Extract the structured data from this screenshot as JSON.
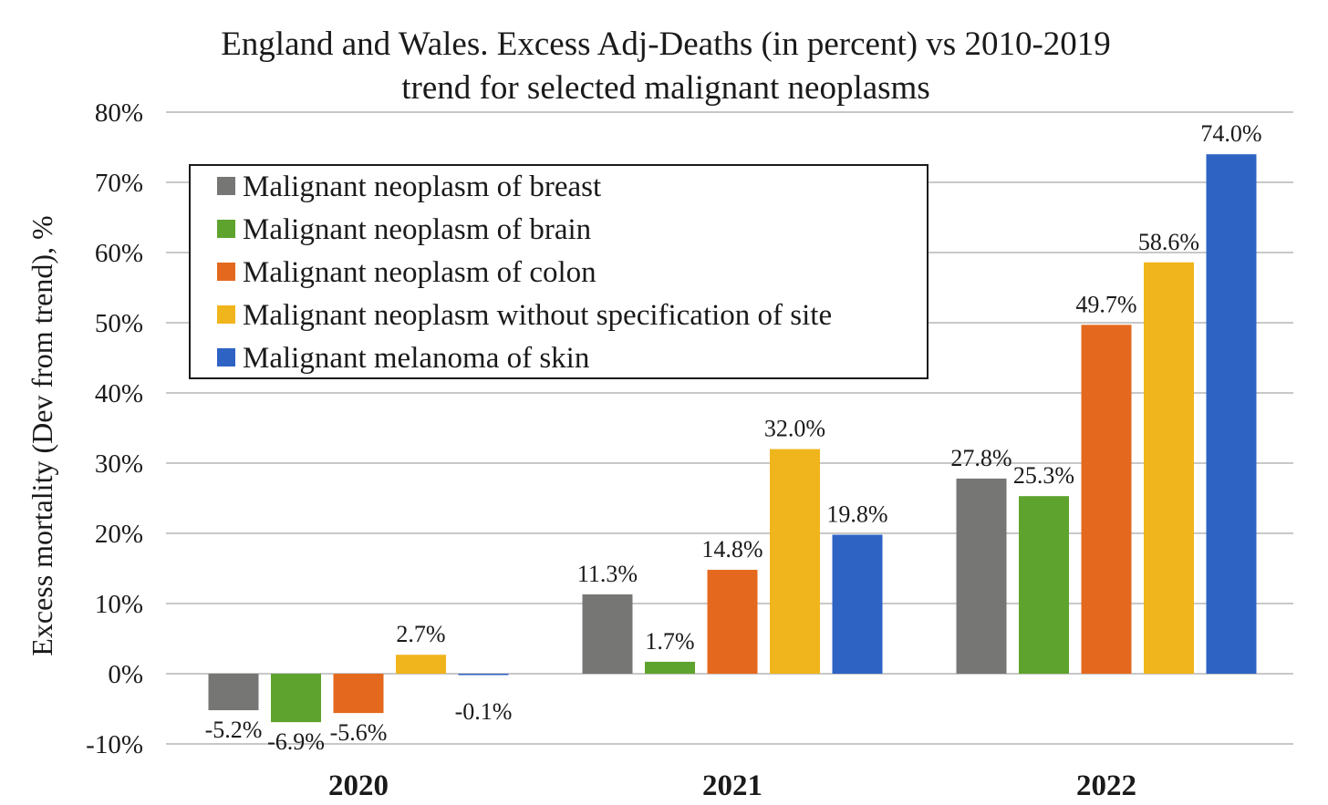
{
  "chart_data": {
    "type": "bar",
    "title_lines": [
      "England and Wales. Excess Adj-Deaths (in percent) vs 2010-2019",
      "trend for selected malignant neoplasms"
    ],
    "xlabel": "",
    "ylabel": "Excess mortality (Dev from trend), %",
    "ylim": [
      -10,
      80
    ],
    "yticks": [
      -10,
      0,
      10,
      20,
      30,
      40,
      50,
      60,
      70,
      80
    ],
    "ytick_labels": [
      "-10%",
      "0%",
      "10%",
      "20%",
      "30%",
      "40%",
      "50%",
      "60%",
      "70%",
      "80%"
    ],
    "grid": true,
    "legend_position": "top-left",
    "categories": [
      "2020",
      "2021",
      "2022"
    ],
    "series": [
      {
        "name": "Malignant neoplasm of breast",
        "color": "#767775",
        "values": [
          -5.2,
          11.3,
          27.8
        ],
        "labels": [
          "-5.2%",
          "11.3%",
          "27.8%"
        ]
      },
      {
        "name": "Malignant neoplasm of brain",
        "color": "#5ea32e",
        "values": [
          -6.9,
          1.7,
          25.3
        ],
        "labels": [
          "-6.9%",
          "1.7%",
          "25.3%"
        ]
      },
      {
        "name": "Malignant neoplasm of colon",
        "color": "#e4691e",
        "values": [
          -5.6,
          14.8,
          49.7
        ],
        "labels": [
          "-5.6%",
          "14.8%",
          "49.7%"
        ]
      },
      {
        "name": "Malignant neoplasm without specification of site",
        "color": "#f0b51c",
        "values": [
          2.7,
          32.0,
          58.6
        ],
        "labels": [
          "2.7%",
          "32.0%",
          "58.6%"
        ]
      },
      {
        "name": "Malignant melanoma of skin",
        "color": "#2e63c4",
        "values": [
          -0.1,
          19.8,
          74.0
        ],
        "labels": [
          "-0.1%",
          "19.8%",
          "74.0%"
        ]
      }
    ]
  }
}
